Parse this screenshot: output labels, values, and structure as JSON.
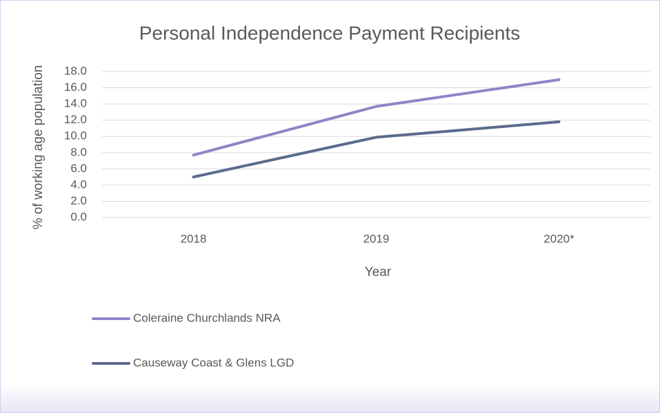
{
  "chart_data": {
    "type": "line",
    "title": "Personal Independence Payment Recipients",
    "x_label": "Year",
    "y_label": "% of working age population",
    "categories": [
      "2018",
      "2019",
      "2020*"
    ],
    "series": [
      {
        "name": "Coleraine Churchlands NRA",
        "color": "#8e86c9",
        "values": [
          7.7,
          13.7,
          17.0
        ]
      },
      {
        "name": "Causeway Coast & Glens LGD",
        "color": "#5a6b8c",
        "values": [
          5.0,
          9.9,
          11.8
        ]
      }
    ],
    "ylim": [
      0,
      18
    ],
    "yticks": [
      {
        "value": 0,
        "label": "0.0"
      },
      {
        "value": 2,
        "label": "2.0"
      },
      {
        "value": 4,
        "label": "4.0"
      },
      {
        "value": 6,
        "label": "6.0"
      },
      {
        "value": 8,
        "label": "8.0"
      },
      {
        "value": 10,
        "label": "10.0"
      },
      {
        "value": 12,
        "label": "12.0"
      },
      {
        "value": 14,
        "label": "14.0"
      },
      {
        "value": 16,
        "label": "16.0"
      },
      {
        "value": 18,
        "label": "18.0"
      }
    ],
    "grid": true,
    "legend": "bottom-left"
  }
}
